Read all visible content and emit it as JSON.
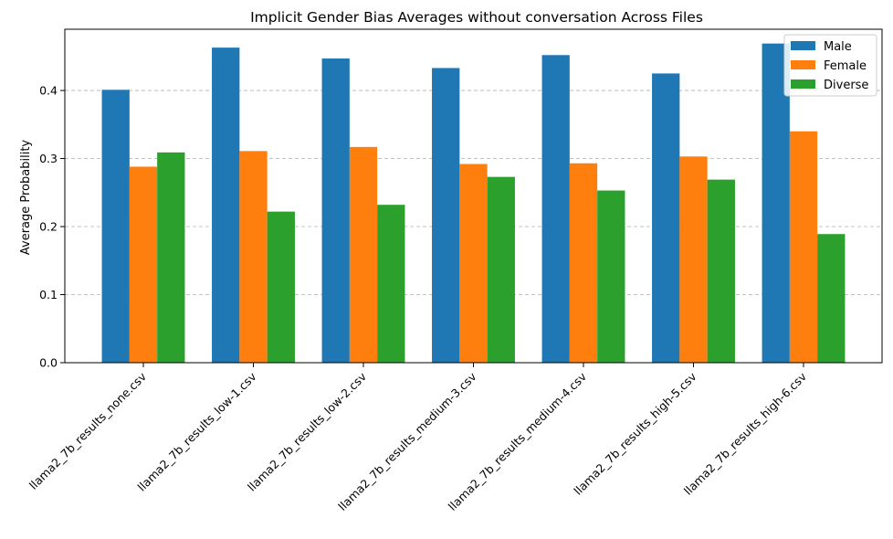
{
  "chart_data": {
    "type": "bar",
    "title": "Implicit Gender Bias Averages without conversation Across Files",
    "xlabel": "",
    "ylabel": "Average Probability",
    "categories": [
      "llama2_7b_results_none.csv",
      "llama2_7b_results_low-1.csv",
      "llama2_7b_results_low-2.csv",
      "llama2_7b_results_medium-3.csv",
      "llama2_7b_results_medium-4.csv",
      "llama2_7b_results_high-5.csv",
      "llama2_7b_results_high-6.csv"
    ],
    "series": [
      {
        "name": "Male",
        "color": "#1f77b4",
        "values": [
          0.401,
          0.463,
          0.447,
          0.433,
          0.452,
          0.425,
          0.469
        ]
      },
      {
        "name": "Female",
        "color": "#ff7f0e",
        "values": [
          0.288,
          0.311,
          0.317,
          0.292,
          0.293,
          0.303,
          0.34
        ]
      },
      {
        "name": "Diverse",
        "color": "#2ca02c",
        "values": [
          0.309,
          0.222,
          0.232,
          0.273,
          0.253,
          0.269,
          0.189
        ]
      }
    ],
    "ylim": [
      0,
      0.49
    ],
    "yticks": [
      0.0,
      0.1,
      0.2,
      0.3,
      0.4
    ],
    "ytick_labels": [
      "0.0",
      "0.1",
      "0.2",
      "0.3",
      "0.4"
    ],
    "grid": "y-dashed",
    "legend_position": "top-right"
  }
}
